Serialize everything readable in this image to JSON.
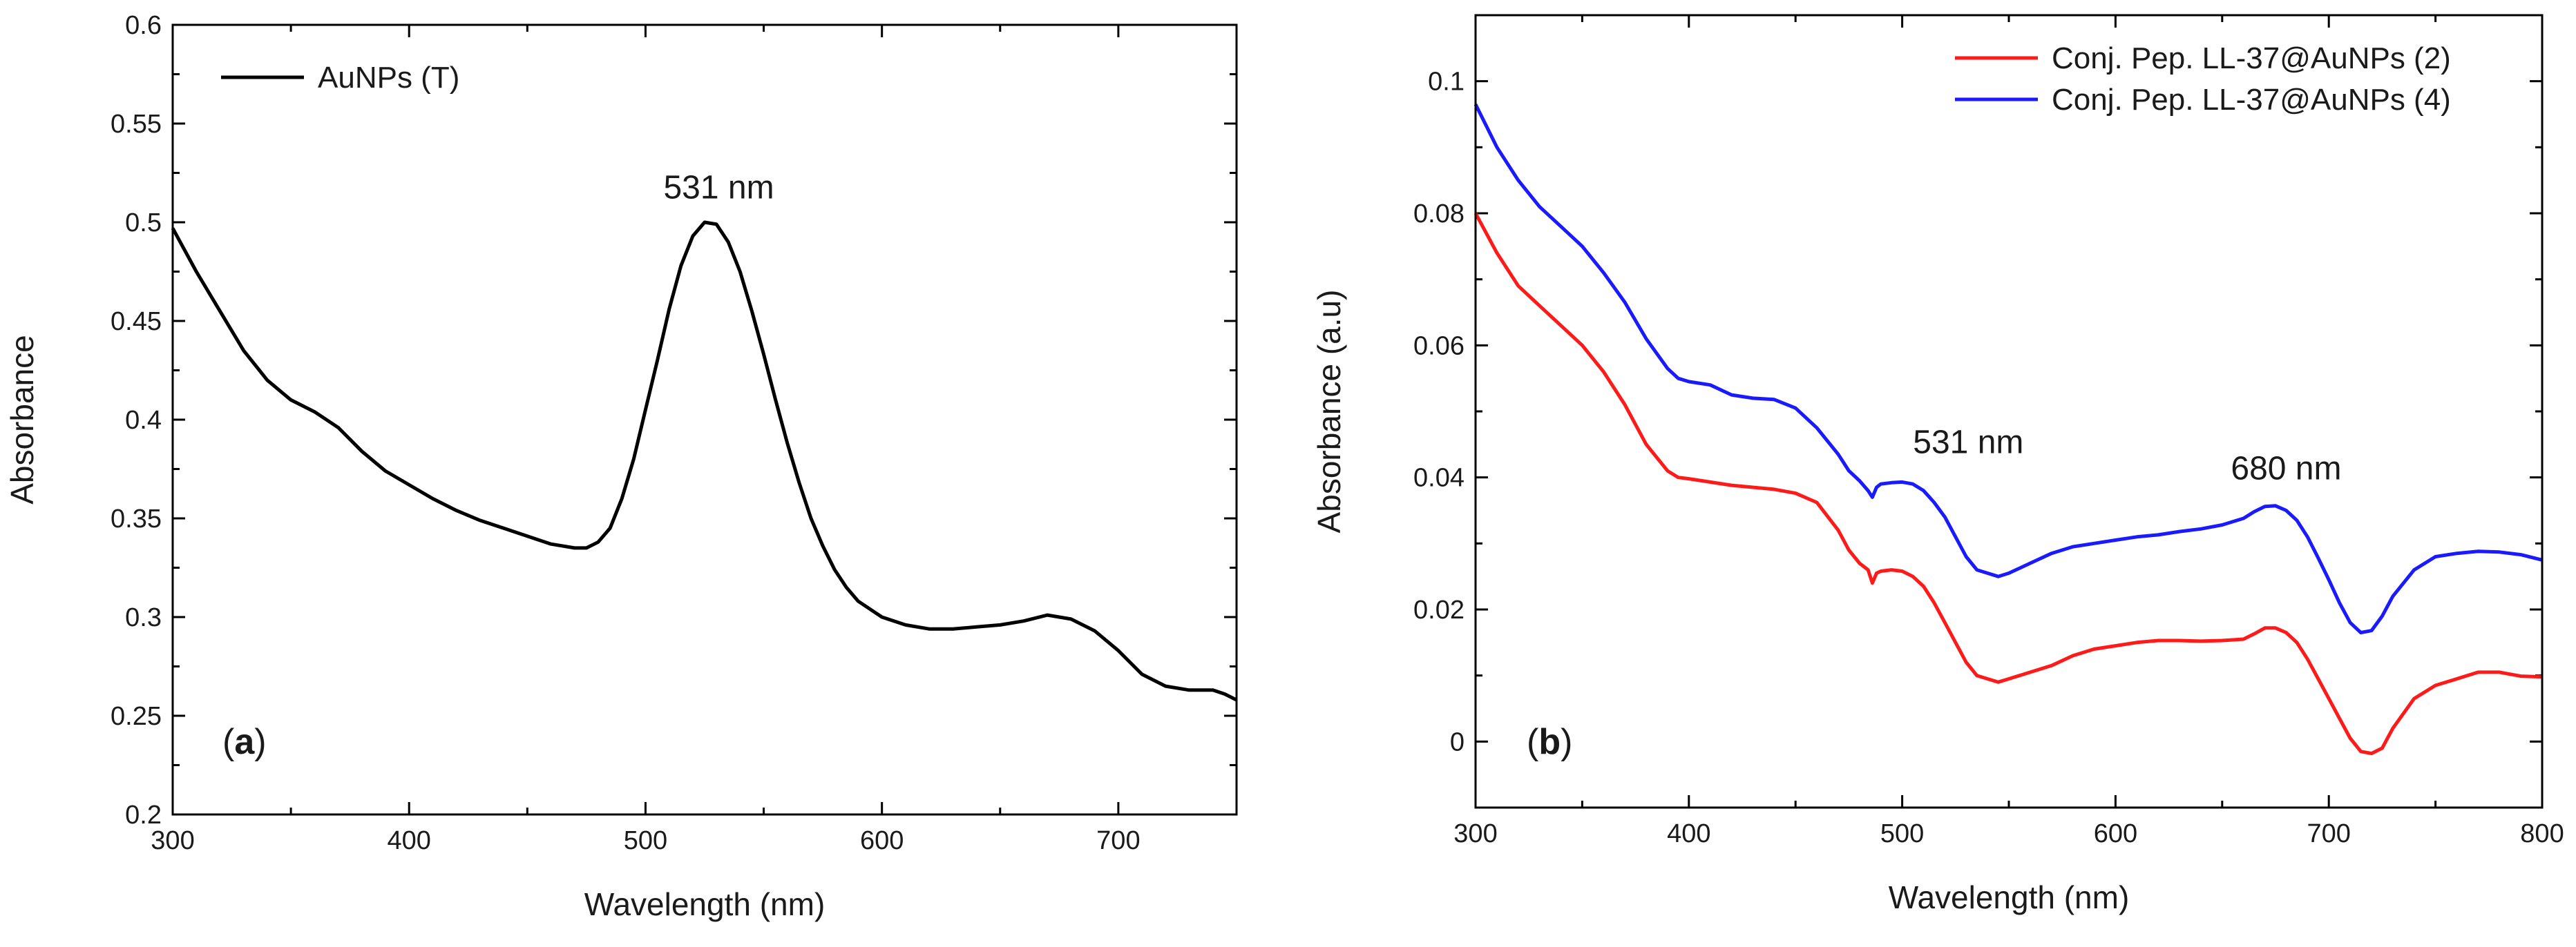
{
  "chart_data": [
    {
      "panel": "a",
      "type": "line",
      "panel_label": "a",
      "xlabel": "Wavelength (nm)",
      "ylabel": "Absorbance",
      "xlim": [
        300,
        750
      ],
      "ylim": [
        0.2,
        0.6
      ],
      "xticks": [
        300,
        400,
        500,
        600,
        700
      ],
      "xtick_labels": [
        "300",
        "400",
        "500",
        "600",
        "700"
      ],
      "yticks": [
        0.2,
        0.25,
        0.3,
        0.35,
        0.4,
        0.45,
        0.5,
        0.55,
        0.6
      ],
      "ytick_labels": [
        "0.2",
        "0.25",
        "0.3",
        "0.35",
        "0.4",
        "0.45",
        "0.5",
        "0.55",
        "0.6"
      ],
      "legend_position": "top-left",
      "series": [
        {
          "name": "AuNPs (T)",
          "color": "#000000",
          "x": [
            300,
            310,
            320,
            330,
            340,
            350,
            360,
            370,
            380,
            390,
            400,
            410,
            420,
            430,
            440,
            450,
            460,
            470,
            475,
            480,
            485,
            490,
            495,
            500,
            505,
            510,
            515,
            520,
            525,
            530,
            535,
            540,
            545,
            550,
            555,
            560,
            565,
            570,
            575,
            580,
            585,
            590,
            600,
            610,
            620,
            630,
            640,
            650,
            660,
            670,
            680,
            690,
            700,
            710,
            720,
            730,
            740,
            745,
            750
          ],
          "values": [
            0.497,
            0.475,
            0.455,
            0.435,
            0.42,
            0.41,
            0.404,
            0.396,
            0.384,
            0.374,
            0.367,
            0.36,
            0.354,
            0.349,
            0.345,
            0.341,
            0.337,
            0.335,
            0.335,
            0.338,
            0.345,
            0.36,
            0.38,
            0.405,
            0.43,
            0.456,
            0.478,
            0.493,
            0.5,
            0.499,
            0.49,
            0.475,
            0.455,
            0.433,
            0.41,
            0.388,
            0.368,
            0.35,
            0.336,
            0.324,
            0.315,
            0.308,
            0.3,
            0.296,
            0.294,
            0.294,
            0.295,
            0.296,
            0.298,
            0.301,
            0.299,
            0.293,
            0.283,
            0.271,
            0.265,
            0.263,
            0.263,
            0.261,
            0.258
          ]
        }
      ],
      "annotations": [
        {
          "text": "531 nm",
          "x": 531,
          "y": 0.512
        }
      ]
    },
    {
      "panel": "b",
      "type": "line",
      "panel_label": "b",
      "xlabel": "Wavelength (nm)",
      "ylabel": "Absorbance (a.u)",
      "xlim": [
        300,
        800
      ],
      "ylim": [
        -0.01,
        0.11
      ],
      "xticks": [
        300,
        400,
        500,
        600,
        700,
        800
      ],
      "xtick_labels": [
        "300",
        "400",
        "500",
        "600",
        "700",
        "800"
      ],
      "yticks": [
        0,
        0.02,
        0.04,
        0.06,
        0.08,
        0.1
      ],
      "ytick_labels": [
        "0",
        "0.02",
        "0.04",
        "0.06",
        "0.08",
        "0.1"
      ],
      "legend_position": "top-right",
      "series": [
        {
          "name": "Conj. Pep. LL-37@AuNPs (2)",
          "color": "#ff1a1a",
          "x": [
            300,
            310,
            320,
            330,
            340,
            350,
            360,
            370,
            380,
            390,
            395,
            400,
            410,
            420,
            430,
            440,
            450,
            460,
            470,
            475,
            480,
            484,
            486,
            488,
            490,
            495,
            500,
            505,
            510,
            515,
            520,
            525,
            530,
            535,
            540,
            545,
            550,
            560,
            570,
            580,
            590,
            600,
            610,
            620,
            630,
            640,
            650,
            660,
            665,
            670,
            675,
            680,
            685,
            690,
            695,
            700,
            705,
            710,
            715,
            720,
            725,
            730,
            740,
            750,
            760,
            770,
            780,
            790,
            800
          ],
          "values": [
            0.08,
            0.074,
            0.069,
            0.066,
            0.063,
            0.06,
            0.056,
            0.051,
            0.045,
            0.041,
            0.04,
            0.0398,
            0.0393,
            0.0388,
            0.0385,
            0.0382,
            0.0376,
            0.0362,
            0.032,
            0.029,
            0.027,
            0.026,
            0.024,
            0.0255,
            0.0258,
            0.026,
            0.0258,
            0.025,
            0.0235,
            0.021,
            0.018,
            0.015,
            0.012,
            0.01,
            0.0095,
            0.009,
            0.0095,
            0.0105,
            0.0115,
            0.013,
            0.014,
            0.0145,
            0.015,
            0.0153,
            0.0153,
            0.0152,
            0.0153,
            0.0155,
            0.0163,
            0.0172,
            0.0172,
            0.0165,
            0.015,
            0.0125,
            0.0095,
            0.0065,
            0.0035,
            0.0005,
            -0.0015,
            -0.0018,
            -0.001,
            0.002,
            0.0065,
            0.0085,
            0.0095,
            0.0105,
            0.0105,
            0.0099,
            0.0098
          ]
        },
        {
          "name": "Conj. Pep. LL-37@AuNPs (4)",
          "color": "#1a1aff",
          "x": [
            300,
            310,
            320,
            330,
            340,
            350,
            360,
            370,
            380,
            390,
            395,
            400,
            410,
            420,
            430,
            440,
            450,
            460,
            470,
            475,
            480,
            484,
            486,
            488,
            490,
            495,
            500,
            505,
            510,
            515,
            520,
            525,
            530,
            535,
            540,
            545,
            550,
            560,
            570,
            580,
            590,
            600,
            610,
            620,
            630,
            640,
            650,
            660,
            665,
            670,
            675,
            680,
            685,
            690,
            695,
            700,
            705,
            710,
            715,
            720,
            725,
            730,
            740,
            750,
            760,
            770,
            780,
            790,
            800
          ],
          "values": [
            0.0965,
            0.09,
            0.085,
            0.081,
            0.078,
            0.075,
            0.071,
            0.0665,
            0.061,
            0.0565,
            0.055,
            0.0545,
            0.054,
            0.0525,
            0.052,
            0.0518,
            0.0505,
            0.0475,
            0.0435,
            0.041,
            0.0395,
            0.038,
            0.037,
            0.0385,
            0.039,
            0.0392,
            0.0393,
            0.039,
            0.038,
            0.0362,
            0.034,
            0.031,
            0.028,
            0.026,
            0.0255,
            0.025,
            0.0255,
            0.027,
            0.0285,
            0.0295,
            0.03,
            0.0305,
            0.031,
            0.0313,
            0.0318,
            0.0322,
            0.0328,
            0.0338,
            0.0348,
            0.0356,
            0.0357,
            0.035,
            0.0335,
            0.031,
            0.0278,
            0.0245,
            0.021,
            0.018,
            0.0165,
            0.0168,
            0.019,
            0.022,
            0.026,
            0.028,
            0.0285,
            0.0288,
            0.0287,
            0.0283,
            0.0275
          ]
        }
      ],
      "annotations": [
        {
          "text": "531 nm",
          "x": 531,
          "y": 0.0437
        },
        {
          "text": "680 nm",
          "x": 680,
          "y": 0.0397
        }
      ]
    }
  ]
}
